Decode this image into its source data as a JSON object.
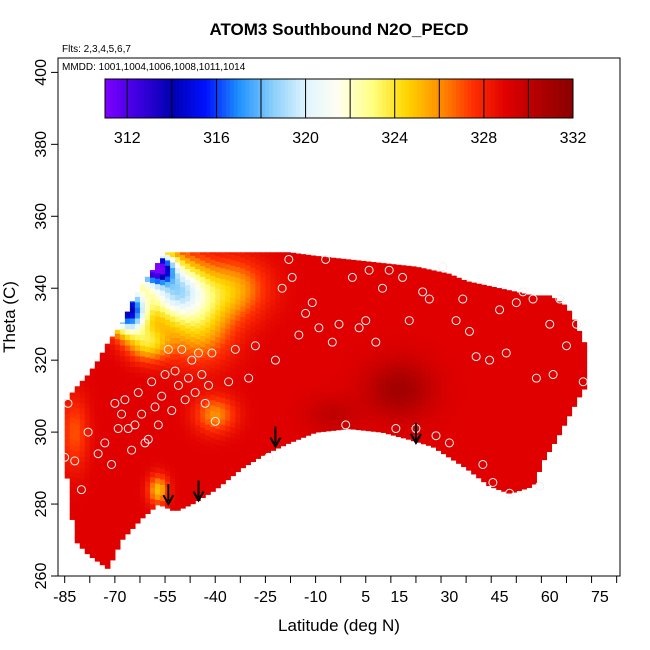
{
  "chart_data": {
    "type": "heatmap",
    "title": "ATOM3 Southbound N2O_PECD",
    "notes": {
      "flights": "Flts: 2,3,4,5,6,7",
      "dates": "MMDD: 1001,1004,1006,1008,1011,1014"
    },
    "xlabel": "Latitude (deg N)",
    "ylabel": "Theta (C)",
    "xlim": [
      -87,
      81
    ],
    "ylim": [
      260,
      404
    ],
    "x_ticks": [
      -85,
      -70,
      -55,
      -40,
      -25,
      -10,
      5,
      15,
      30,
      45,
      60,
      75
    ],
    "y_ticks": [
      260,
      280,
      300,
      320,
      340,
      360,
      380,
      400
    ],
    "colorbar": {
      "min": 311,
      "max": 332,
      "ticks": [
        312,
        316,
        320,
        324,
        328,
        332
      ],
      "colors": [
        "#7f00ff",
        "#3b00e0",
        "#0000b0",
        "#0010ff",
        "#1e90ff",
        "#87cefa",
        "#e0f4ff",
        "#fffff0",
        "#ffff80",
        "#ffd700",
        "#ff9000",
        "#ff3000",
        "#e00000",
        "#b00000",
        "#8b0000"
      ]
    },
    "field_envelope": {
      "lower": [
        [
          -85,
          293
        ],
        [
          -82,
          270
        ],
        [
          -78,
          266
        ],
        [
          -72,
          262
        ],
        [
          -68,
          270
        ],
        [
          -62,
          276
        ],
        [
          -57,
          280
        ],
        [
          -52,
          278
        ],
        [
          -47,
          280
        ],
        [
          -40,
          284
        ],
        [
          -32,
          290
        ],
        [
          -25,
          294
        ],
        [
          -18,
          297
        ],
        [
          -10,
          300
        ],
        [
          0,
          301
        ],
        [
          10,
          300
        ],
        [
          18,
          298
        ],
        [
          25,
          296
        ],
        [
          30,
          293
        ],
        [
          35,
          290
        ],
        [
          42,
          285
        ],
        [
          48,
          283
        ],
        [
          55,
          285
        ],
        [
          58,
          292
        ],
        [
          62,
          298
        ],
        [
          66,
          305
        ],
        [
          70,
          312
        ]
      ],
      "upper": [
        [
          -85,
          308
        ],
        [
          -82,
          312
        ],
        [
          -78,
          316
        ],
        [
          -75,
          320
        ],
        [
          -72,
          325
        ],
        [
          -68,
          330
        ],
        [
          -65,
          336
        ],
        [
          -62,
          341
        ],
        [
          -58,
          346
        ],
        [
          -55,
          350
        ],
        [
          -45,
          350
        ],
        [
          -35,
          350
        ],
        [
          -25,
          350
        ],
        [
          -18,
          350
        ],
        [
          -10,
          349
        ],
        [
          0,
          348
        ],
        [
          10,
          347
        ],
        [
          20,
          346
        ],
        [
          25,
          345
        ],
        [
          30,
          344
        ],
        [
          35,
          342
        ],
        [
          40,
          341
        ],
        [
          45,
          340
        ],
        [
          50,
          339
        ],
        [
          55,
          338
        ],
        [
          60,
          338
        ],
        [
          65,
          335
        ],
        [
          68,
          330
        ],
        [
          70,
          325
        ]
      ]
    },
    "field_model": {
      "base_value": 329,
      "low_blobs": [
        {
          "lat": -58,
          "theta": 346,
          "value": 312.5,
          "lat_sigma": 5,
          "theta_sigma": 4
        },
        {
          "lat": -66,
          "theta": 334,
          "value": 314,
          "lat_sigma": 5,
          "theta_sigma": 6
        },
        {
          "lat": -52,
          "theta": 340,
          "value": 320,
          "lat_sigma": 9,
          "theta_sigma": 8
        },
        {
          "lat": -60,
          "theta": 325,
          "value": 324.5,
          "lat_sigma": 6,
          "theta_sigma": 5
        },
        {
          "lat": -45,
          "theta": 330,
          "value": 325,
          "lat_sigma": 10,
          "theta_sigma": 10
        },
        {
          "lat": -35,
          "theta": 340,
          "value": 325.5,
          "lat_sigma": 10,
          "theta_sigma": 8
        },
        {
          "lat": -40,
          "theta": 305,
          "value": 326,
          "lat_sigma": 6,
          "theta_sigma": 5
        },
        {
          "lat": -57,
          "theta": 284,
          "value": 325,
          "lat_sigma": 3,
          "theta_sigma": 4
        },
        {
          "lat": -82,
          "theta": 300,
          "value": 327,
          "lat_sigma": 4,
          "theta_sigma": 10
        }
      ],
      "high_blobs": [
        {
          "lat": 15,
          "theta": 312,
          "value": 331,
          "lat_sigma": 10,
          "theta_sigma": 8
        },
        {
          "lat": -5,
          "theta": 305,
          "value": 330,
          "lat_sigma": 8,
          "theta_sigma": 5
        }
      ]
    },
    "observations": [
      [
        -85,
        293
      ],
      [
        -84,
        308
      ],
      [
        -82,
        292
      ],
      [
        -80,
        284
      ],
      [
        -78,
        300
      ],
      [
        -75,
        294
      ],
      [
        -73,
        297
      ],
      [
        -71,
        291
      ],
      [
        -70,
        308
      ],
      [
        -69,
        301
      ],
      [
        -68,
        305
      ],
      [
        -67,
        309
      ],
      [
        -66,
        301
      ],
      [
        -65,
        295
      ],
      [
        -64,
        302
      ],
      [
        -63,
        311
      ],
      [
        -62,
        305
      ],
      [
        -61,
        297
      ],
      [
        -60,
        298
      ],
      [
        -59,
        314
      ],
      [
        -58,
        307
      ],
      [
        -57,
        302
      ],
      [
        -56,
        310
      ],
      [
        -55,
        316
      ],
      [
        -54,
        323
      ],
      [
        -53,
        306
      ],
      [
        -52,
        317
      ],
      [
        -51,
        313
      ],
      [
        -50,
        323
      ],
      [
        -49,
        309
      ],
      [
        -48,
        315
      ],
      [
        -47,
        320
      ],
      [
        -46,
        311
      ],
      [
        -45,
        322
      ],
      [
        -44,
        316
      ],
      [
        -43,
        308
      ],
      [
        -42,
        313
      ],
      [
        -41,
        322
      ],
      [
        -40,
        303
      ],
      [
        -36,
        314
      ],
      [
        -34,
        323
      ],
      [
        -30,
        315
      ],
      [
        -28,
        324
      ],
      [
        -24,
        293
      ],
      [
        -22,
        320
      ],
      [
        -20,
        340
      ],
      [
        -18,
        348
      ],
      [
        -17,
        343
      ],
      [
        -15,
        327
      ],
      [
        -13,
        333
      ],
      [
        -11,
        336
      ],
      [
        -9,
        329
      ],
      [
        -7,
        348
      ],
      [
        -5,
        325
      ],
      [
        -3,
        330
      ],
      [
        -1,
        302
      ],
      [
        1,
        343
      ],
      [
        3,
        329
      ],
      [
        5,
        331
      ],
      [
        6,
        345
      ],
      [
        8,
        325
      ],
      [
        10,
        340
      ],
      [
        12,
        345
      ],
      [
        14,
        301
      ],
      [
        16,
        343
      ],
      [
        18,
        331
      ],
      [
        20,
        301
      ],
      [
        22,
        339
      ],
      [
        24,
        337
      ],
      [
        26,
        299
      ],
      [
        28,
        346
      ],
      [
        30,
        297
      ],
      [
        32,
        331
      ],
      [
        34,
        337
      ],
      [
        36,
        328
      ],
      [
        38,
        321
      ],
      [
        40,
        291
      ],
      [
        42,
        320
      ],
      [
        43,
        286
      ],
      [
        45,
        334
      ],
      [
        47,
        322
      ],
      [
        48,
        283
      ],
      [
        50,
        336
      ],
      [
        52,
        339
      ],
      [
        55,
        337
      ],
      [
        56,
        315
      ],
      [
        57,
        285
      ],
      [
        60,
        330
      ],
      [
        61,
        316
      ],
      [
        63,
        337
      ],
      [
        65,
        324
      ],
      [
        68,
        330
      ],
      [
        70,
        314
      ]
    ],
    "arrows": [
      [
        -54,
        280
      ],
      [
        -45,
        281
      ],
      [
        -22,
        296
      ],
      [
        20,
        297
      ]
    ],
    "legend": "none",
    "grid": false
  }
}
